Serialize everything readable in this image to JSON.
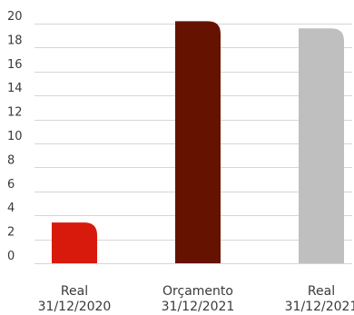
{
  "chart_data": {
    "type": "bar",
    "title": "",
    "xlabel": "",
    "ylabel": "",
    "ylim": [
      0,
      20
    ],
    "yticks": [
      0,
      2,
      4,
      6,
      8,
      10,
      12,
      14,
      16,
      18,
      20
    ],
    "grid": true,
    "legend": "none",
    "categories": [
      [
        "Real",
        "31/12/2020"
      ],
      [
        "Orçamento",
        "31/12/2021"
      ],
      [
        "Real",
        "31/12/2021"
      ]
    ],
    "values": [
      3.4,
      20.2,
      19.6
    ],
    "colors": [
      "#d71a0b",
      "#661200",
      "#bfbfbf"
    ]
  }
}
